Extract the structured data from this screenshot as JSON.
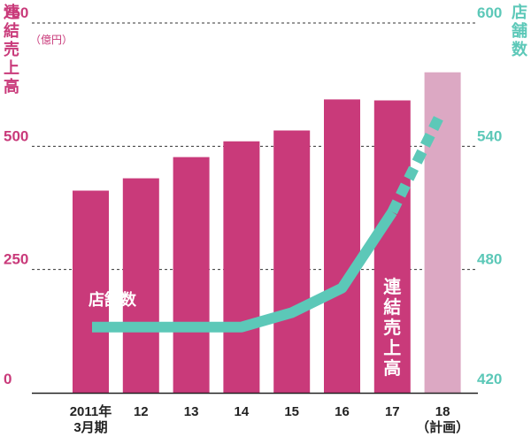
{
  "colors": {
    "bar": "#c93a7a",
    "bar_plan": "#dca8c3",
    "line": "#5cc8b8",
    "left_axis": "#c93a7a",
    "right_axis": "#5cc8b8",
    "grid": "#333333",
    "axis": "#222222",
    "category_text": "#222222",
    "bar_label_text": "#ffffff",
    "line_label_text": "#ffffff"
  },
  "chart_data": {
    "type": "bar+line",
    "categories": [
      "2011年\n3月期",
      "12",
      "13",
      "14",
      "15",
      "16",
      "17",
      "18\n（計画）"
    ],
    "left_axis": {
      "label": "連結売上高",
      "unit": "（億円）",
      "ticks": [
        "0",
        "250",
        "500",
        "750"
      ],
      "ylim": [
        0,
        750
      ]
    },
    "right_axis": {
      "label": "店舗数",
      "ticks": [
        "420",
        "480",
        "540",
        "600"
      ],
      "ylim": [
        420,
        600
      ]
    },
    "grid": true,
    "series": [
      {
        "name": "連結売上高",
        "type": "bar",
        "axis": "left",
        "values": [
          410,
          435,
          478,
          510,
          532,
          595,
          593,
          650
        ],
        "planned_from_index": 7
      },
      {
        "name": "店舗数",
        "type": "line",
        "axis": "right",
        "values": [
          452,
          452,
          452,
          452,
          459,
          471,
          508,
          555
        ],
        "planned_from_index": 6
      }
    ],
    "annotations": {
      "line_label": "店舗数",
      "bar_label": "連結売上高"
    }
  }
}
